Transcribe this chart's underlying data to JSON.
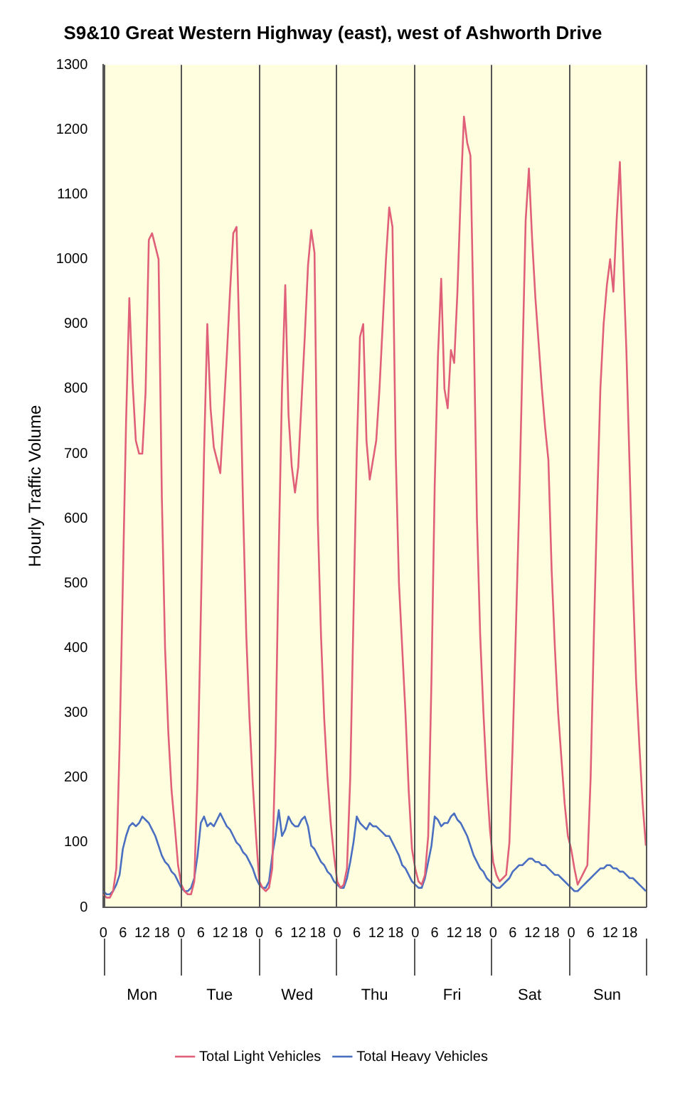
{
  "chart_data": {
    "type": "line",
    "title": "S9&10 Great Western Highway (east), west of Ashworth Drive",
    "ylabel": "Hourly Traffic Volume",
    "categories": [
      "0",
      null,
      null,
      null,
      null,
      null,
      "6",
      null,
      null,
      null,
      null,
      null,
      "12",
      null,
      null,
      null,
      null,
      null,
      "18",
      null,
      null,
      null,
      null,
      null,
      "0",
      null,
      null,
      null,
      null,
      null,
      "6",
      null,
      null,
      null,
      null,
      null,
      "12",
      null,
      null,
      null,
      null,
      null,
      "18",
      null,
      null,
      null,
      null,
      null,
      "0",
      null,
      null,
      null,
      null,
      null,
      "6",
      null,
      null,
      null,
      null,
      null,
      "12",
      null,
      null,
      null,
      null,
      null,
      "18",
      null,
      null,
      null,
      null,
      null,
      "0",
      null,
      null,
      null,
      null,
      null,
      "6",
      null,
      null,
      null,
      null,
      null,
      "12",
      null,
      null,
      null,
      null,
      null,
      "18",
      null,
      null,
      null,
      null,
      null,
      "0",
      null,
      null,
      null,
      null,
      null,
      "6",
      null,
      null,
      null,
      null,
      null,
      "12",
      null,
      null,
      null,
      null,
      null,
      "18",
      null,
      null,
      null,
      null,
      null,
      "0",
      null,
      null,
      null,
      null,
      null,
      "6",
      null,
      null,
      null,
      null,
      null,
      "12",
      null,
      null,
      null,
      null,
      null,
      "18",
      null,
      null,
      null,
      null,
      null,
      "0",
      null,
      null,
      null,
      null,
      null,
      "6",
      null,
      null,
      null,
      null,
      null,
      "12",
      null,
      null,
      null,
      null,
      null,
      "18",
      null,
      null,
      null,
      null,
      null
    ],
    "annotations": [
      "Mon",
      "Tue",
      "Wed",
      "Thu",
      "Fri",
      "Sat",
      "Sun"
    ],
    "ylim": [
      0,
      1300
    ],
    "yticks": [
      0,
      100,
      200,
      300,
      400,
      500,
      600,
      700,
      800,
      900,
      1000,
      1100,
      1200,
      1300
    ],
    "grid": "x",
    "legend": "bottom",
    "marker": "none",
    "line_style": "solid",
    "series": [
      {
        "name": "Total Light Vehicles",
        "color": "#e0607a",
        "values": [
          20,
          15,
          15,
          25,
          60,
          250,
          500,
          750,
          940,
          810,
          720,
          700,
          700,
          795,
          1030,
          1040,
          1020,
          1000,
          635,
          400,
          270,
          180,
          125,
          65,
          35,
          25,
          20,
          20,
          40,
          200,
          450,
          700,
          900,
          770,
          710,
          690,
          670,
          760,
          850,
          950,
          1040,
          1050,
          850,
          620,
          420,
          290,
          190,
          110,
          40,
          30,
          25,
          30,
          60,
          250,
          550,
          800,
          960,
          760,
          680,
          640,
          680,
          780,
          880,
          990,
          1045,
          1010,
          600,
          420,
          290,
          200,
          130,
          80,
          40,
          30,
          35,
          60,
          200,
          450,
          700,
          880,
          900,
          720,
          660,
          690,
          720,
          800,
          900,
          1000,
          1080,
          1050,
          700,
          500,
          400,
          300,
          180,
          90,
          60,
          40,
          35,
          50,
          110,
          350,
          650,
          850,
          970,
          800,
          770,
          860,
          840,
          950,
          1100,
          1220,
          1180,
          1160,
          900,
          600,
          420,
          300,
          200,
          120,
          70,
          50,
          40,
          45,
          50,
          100,
          250,
          430,
          620,
          840,
          1060,
          1140,
          1030,
          940,
          870,
          800,
          740,
          690,
          520,
          400,
          300,
          230,
          160,
          110,
          90,
          60,
          35,
          45,
          55,
          65,
          200,
          420,
          620,
          800,
          900,
          960,
          1000,
          950,
          1060,
          1150,
          1000,
          860,
          680,
          500,
          350,
          250,
          160,
          95
        ]
      },
      {
        "name": "Total Heavy Vehicles",
        "color": "#4a6fc0",
        "values": [
          25,
          20,
          20,
          25,
          35,
          50,
          90,
          110,
          125,
          130,
          125,
          130,
          140,
          135,
          130,
          120,
          110,
          95,
          80,
          70,
          65,
          55,
          50,
          40,
          30,
          25,
          25,
          30,
          45,
          80,
          130,
          140,
          125,
          130,
          125,
          135,
          145,
          135,
          125,
          120,
          110,
          100,
          95,
          85,
          80,
          70,
          60,
          45,
          35,
          30,
          30,
          40,
          80,
          110,
          150,
          110,
          120,
          140,
          130,
          125,
          125,
          135,
          140,
          125,
          95,
          90,
          80,
          70,
          65,
          55,
          50,
          40,
          35,
          30,
          30,
          45,
          70,
          100,
          140,
          130,
          125,
          120,
          130,
          125,
          125,
          120,
          115,
          110,
          110,
          100,
          90,
          80,
          65,
          60,
          50,
          40,
          35,
          30,
          30,
          45,
          70,
          95,
          140,
          135,
          125,
          130,
          130,
          140,
          145,
          135,
          130,
          120,
          110,
          95,
          80,
          70,
          60,
          55,
          45,
          40,
          35,
          30,
          30,
          35,
          40,
          45,
          55,
          60,
          65,
          65,
          70,
          75,
          75,
          70,
          70,
          65,
          65,
          60,
          55,
          50,
          50,
          45,
          40,
          35,
          30,
          25,
          25,
          30,
          35,
          40,
          45,
          50,
          55,
          60,
          60,
          65,
          65,
          60,
          60,
          55,
          55,
          50,
          45,
          45,
          40,
          35,
          30,
          25
        ]
      }
    ]
  }
}
